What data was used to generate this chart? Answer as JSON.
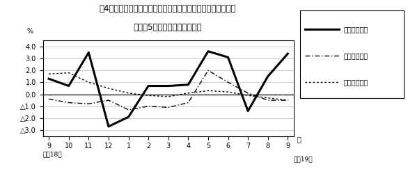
{
  "title_line1": "第4図　　賃金、労働時間、常用雇用指数対前年同月比の推移",
  "title_line2": "（規模5人以上　調査産業計）",
  "xlabel_bottom_left": "平成18年",
  "xlabel_bottom_right": "平成19年",
  "month_label": "月",
  "x_labels": [
    "9",
    "10",
    "11",
    "12",
    "1",
    "2",
    "3",
    "4",
    "5",
    "6",
    "7",
    "8",
    "9"
  ],
  "ylim": [
    -3.5,
    4.5
  ],
  "yticks": [
    -3.0,
    -2.0,
    -1.0,
    0.0,
    1.0,
    2.0,
    3.0,
    4.0
  ],
  "ylabel": "%",
  "legend_labels": [
    "現金給与総額",
    "総実労働時間",
    "常用雇用指数"
  ],
  "line1_values": [
    1.3,
    0.7,
    3.5,
    -2.7,
    -1.9,
    0.7,
    0.7,
    0.8,
    3.6,
    3.1,
    -1.4,
    1.5,
    3.4
  ],
  "line2_values": [
    -0.4,
    -0.7,
    -0.8,
    -0.5,
    -1.3,
    -1.0,
    -1.1,
    -0.7,
    2.0,
    1.0,
    0.1,
    -0.5,
    -0.5
  ],
  "line3_values": [
    1.7,
    1.8,
    1.0,
    0.5,
    0.1,
    -0.1,
    -0.2,
    0.1,
    0.3,
    0.2,
    -0.1,
    -0.3,
    -0.5
  ],
  "background_color": "#ffffff",
  "grid_color": "#bbbbbb",
  "title_fontsize": 8.5,
  "tick_fontsize": 7,
  "legend_fontsize": 7
}
